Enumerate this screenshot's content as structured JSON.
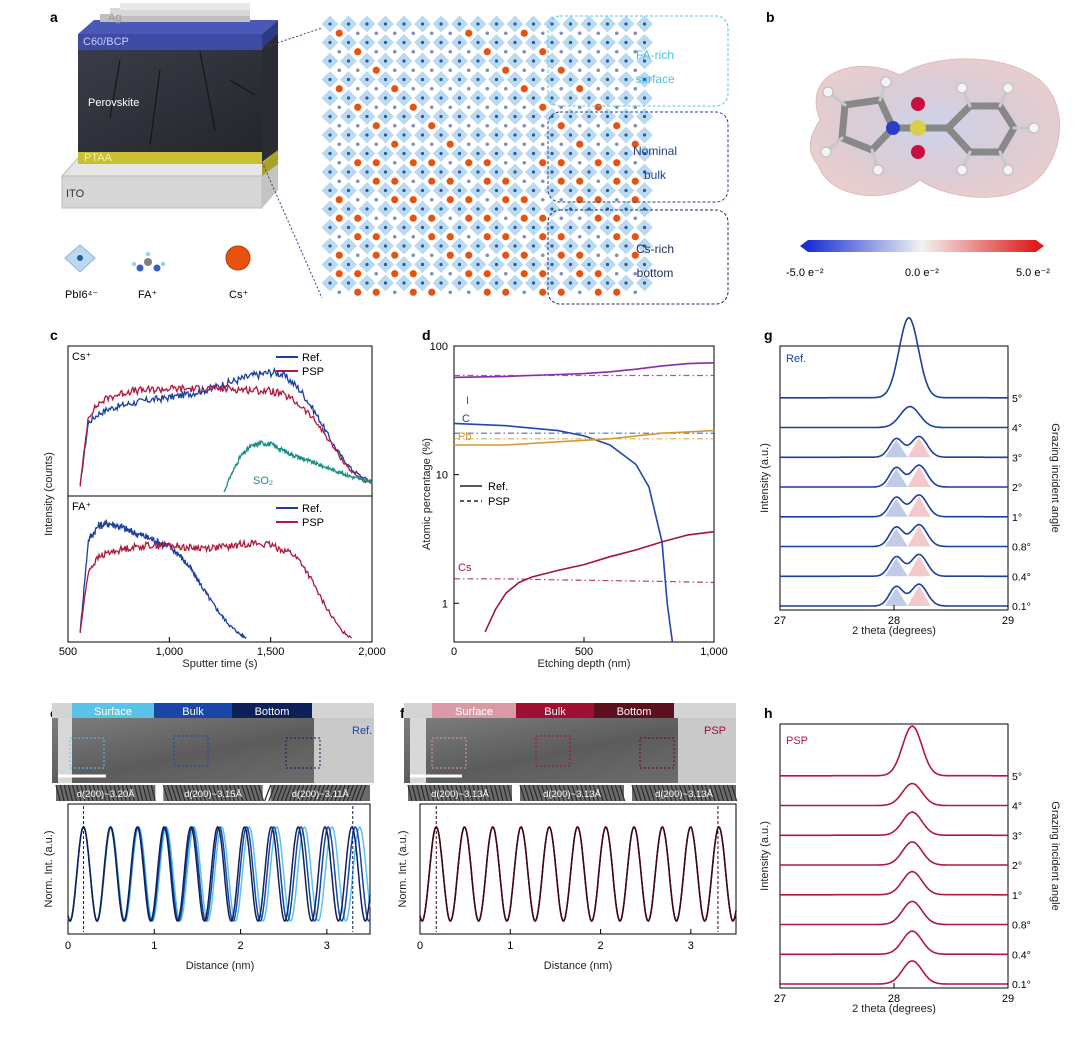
{
  "panel_letters": [
    "a",
    "b",
    "c",
    "d",
    "e",
    "f",
    "g",
    "h"
  ],
  "device": {
    "layers": [
      "Ag",
      "C60/BCP",
      "Perovskite",
      "PTAA",
      "ITO"
    ],
    "legend": [
      "PbI6⁴⁻",
      "FA⁺",
      "Cs⁺"
    ],
    "regions": [
      "FA-rich",
      "surface",
      "Nominal",
      "bulk",
      "Cs-rich",
      "bottom"
    ]
  },
  "esp": {
    "scale_ticks": [
      "-5.0 e⁻²",
      "0.0 e⁻²",
      "5.0 e⁻²"
    ]
  },
  "colors": {
    "ref": "#1a3f9e",
    "psp": "#b0183d",
    "so2": "#1b8f86",
    "iodine": "#8a2aa6",
    "carbon": "#2046b0",
    "lead": "#d69a2c",
    "cesium": "#a0163a"
  },
  "chart_data": [
    {
      "id": "c",
      "type": "line",
      "ylabel": "Intensity (counts)",
      "xlabel": "Sputter time (s)",
      "xlim": [
        500,
        2000
      ],
      "xticks": [
        "500",
        "1,000",
        "1,500",
        "2,000"
      ],
      "subplots": [
        {
          "label": "Cs⁺",
          "series": [
            {
              "name": "Ref.",
              "x": [
                560,
                600,
                650,
                700,
                800,
                900,
                1000,
                1100,
                1200,
                1300,
                1400,
                1500,
                1550,
                1600,
                1650,
                1700,
                1750,
                1800,
                1850,
                1900,
                1950,
                2000
              ],
              "y": [
                0.05,
                0.55,
                0.62,
                0.66,
                0.7,
                0.73,
                0.75,
                0.78,
                0.82,
                0.87,
                0.92,
                0.95,
                0.94,
                0.88,
                0.8,
                0.68,
                0.55,
                0.4,
                0.28,
                0.18,
                0.12,
                0.08
              ]
            },
            {
              "name": "PSP",
              "x": [
                560,
                600,
                650,
                700,
                800,
                900,
                1000,
                1100,
                1200,
                1300,
                1400,
                1500,
                1550,
                1600,
                1650,
                1700,
                1750,
                1800,
                1850,
                1900,
                1950,
                2000
              ],
              "y": [
                0.05,
                0.6,
                0.7,
                0.75,
                0.8,
                0.81,
                0.82,
                0.82,
                0.82,
                0.82,
                0.81,
                0.8,
                0.78,
                0.74,
                0.68,
                0.6,
                0.5,
                0.38,
                0.26,
                0.16,
                0.1,
                0.06
              ]
            },
            {
              "name": "SO₂",
              "x": [
                1270,
                1300,
                1350,
                1400,
                1450,
                1500,
                1550,
                1600,
                1650,
                1700,
                1750,
                1800,
                1850,
                1900,
                1950,
                2000
              ],
              "y": [
                0.0,
                0.12,
                0.28,
                0.36,
                0.39,
                0.38,
                0.34,
                0.3,
                0.27,
                0.24,
                0.21,
                0.18,
                0.15,
                0.12,
                0.1,
                0.08
              ]
            }
          ]
        },
        {
          "label": "FA⁺",
          "series": [
            {
              "name": "Ref.",
              "x": [
                560,
                600,
                650,
                700,
                750,
                800,
                900,
                1000,
                1050,
                1100,
                1150,
                1200,
                1250,
                1300,
                1350,
                1380
              ],
              "y": [
                0.05,
                0.8,
                0.92,
                0.94,
                0.92,
                0.88,
                0.82,
                0.75,
                0.68,
                0.58,
                0.45,
                0.32,
                0.2,
                0.1,
                0.03,
                0.0
              ]
            },
            {
              "name": "PSP",
              "x": [
                560,
                600,
                650,
                700,
                800,
                900,
                1000,
                1100,
                1200,
                1300,
                1400,
                1500,
                1600,
                1650,
                1700,
                1750,
                1800,
                1850,
                1900
              ],
              "y": [
                0.05,
                0.55,
                0.66,
                0.7,
                0.74,
                0.76,
                0.76,
                0.74,
                0.74,
                0.75,
                0.78,
                0.76,
                0.7,
                0.62,
                0.48,
                0.32,
                0.18,
                0.06,
                0.0
              ]
            }
          ]
        }
      ]
    },
    {
      "id": "d",
      "type": "line",
      "yscale": "log",
      "ylabel": "Atomic percentage (%)",
      "xlabel": "Etching depth (nm)",
      "xlim": [
        0,
        1000
      ],
      "ylim": [
        0.5,
        100
      ],
      "xticks": [
        "0",
        "500",
        "1,000"
      ],
      "yticks": [
        "1",
        "10",
        "100"
      ],
      "legend": [
        "Ref.",
        "PSP"
      ],
      "element_labels": [
        "I",
        "C",
        "Pb",
        "Cs"
      ],
      "series": [
        {
          "name": "I Ref.",
          "x": [
            0,
            200,
            400,
            500,
            600,
            700,
            800,
            900,
            1000
          ],
          "y": [
            57,
            58,
            60,
            61,
            63,
            66,
            70,
            73,
            74
          ]
        },
        {
          "name": "I PSP",
          "x": [
            0,
            200,
            400,
            600,
            800,
            1000
          ],
          "y": [
            59,
            59,
            59,
            59,
            59,
            59
          ]
        },
        {
          "name": "C Ref.",
          "x": [
            0,
            200,
            400,
            500,
            600,
            700,
            750,
            800,
            820,
            840
          ],
          "y": [
            25,
            24,
            22,
            20,
            17,
            12,
            8,
            3,
            1,
            0.5
          ]
        },
        {
          "name": "C PSP",
          "x": [
            0,
            200,
            400,
            600,
            800,
            1000
          ],
          "y": [
            21,
            21,
            21,
            21,
            21,
            21
          ]
        },
        {
          "name": "Pb Ref.",
          "x": [
            0,
            200,
            400,
            600,
            800,
            1000
          ],
          "y": [
            17,
            17,
            18,
            19,
            21,
            22
          ]
        },
        {
          "name": "Pb PSP",
          "x": [
            0,
            200,
            400,
            600,
            800,
            1000
          ],
          "y": [
            19,
            19,
            19,
            19,
            19,
            19
          ]
        },
        {
          "name": "Cs Ref.",
          "x": [
            120,
            160,
            200,
            250,
            300,
            400,
            500,
            600,
            700,
            800,
            900,
            1000
          ],
          "y": [
            0.6,
            0.9,
            1.2,
            1.45,
            1.6,
            1.8,
            2.0,
            2.3,
            2.6,
            3.0,
            3.4,
            3.6
          ]
        },
        {
          "name": "Cs PSP",
          "x": [
            0,
            200,
            400,
            600,
            800,
            1000
          ],
          "y": [
            1.55,
            1.55,
            1.52,
            1.5,
            1.48,
            1.45
          ]
        }
      ]
    },
    {
      "id": "g",
      "type": "line",
      "title": "Ref.",
      "xlabel": "2 theta (degrees)",
      "ylabel": "Intensity (a.u.)",
      "y2label": "Grazing incident angle",
      "xlim": [
        27,
        29
      ],
      "xticks": [
        "27",
        "28",
        "29"
      ],
      "angles": [
        "5°",
        "4°",
        "3°",
        "2°",
        "1°",
        "0.8°",
        "0.4°",
        "0.1°"
      ],
      "peak_centers": [
        28.13,
        28.14,
        28.16,
        28.14,
        28.13,
        28.12,
        28.12,
        28.12
      ],
      "peak_heights": [
        1.0,
        0.38,
        0.42,
        0.44,
        0.44,
        0.44,
        0.44,
        0.44
      ]
    },
    {
      "id": "h",
      "type": "line",
      "title": "PSP",
      "xlabel": "2 theta (degrees)",
      "ylabel": "Intensity (a.u.)",
      "y2label": "Grazing incident angle",
      "xlim": [
        27,
        29
      ],
      "xticks": [
        "27",
        "28",
        "29"
      ],
      "angles": [
        "5°",
        "4°",
        "3°",
        "2°",
        "1°",
        "0.8°",
        "0.4°",
        "0.1°"
      ],
      "peak_centers": [
        28.16,
        28.16,
        28.16,
        28.16,
        28.16,
        28.16,
        28.16,
        28.16
      ],
      "peak_heights": [
        0.62,
        0.4,
        0.42,
        0.42,
        0.42,
        0.42,
        0.42,
        0.42
      ]
    },
    {
      "id": "e",
      "type": "line",
      "title": "Ref.",
      "xlabel": "Distance (nm)",
      "ylabel": "Norm. Int. (a.u.)",
      "xlim": [
        0,
        3.5
      ],
      "xticks": [
        "0",
        "1",
        "2",
        "3"
      ],
      "bands": [
        "Surface",
        "Bulk",
        "Bottom"
      ],
      "d_spacings": [
        "~3.20Å",
        "~3.15Å",
        "~3.11Å"
      ],
      "d_label": "d(200)",
      "series": [
        {
          "name": "Surface",
          "period": 0.32
        },
        {
          "name": "Bulk",
          "period": 0.315
        },
        {
          "name": "Bottom",
          "period": 0.311
        }
      ]
    },
    {
      "id": "f",
      "type": "line",
      "title": "PSP",
      "xlabel": "Distance (nm)",
      "ylabel": "Norm. Int. (a.u.)",
      "xlim": [
        0,
        3.5
      ],
      "xticks": [
        "0",
        "1",
        "2",
        "3"
      ],
      "bands": [
        "Surface",
        "Bulk",
        "Bottom"
      ],
      "d_spacings": [
        "~3.13Å",
        "~3.13Å",
        "~3.13Å"
      ],
      "d_label": "d(200)",
      "series": [
        {
          "name": "Surface",
          "period": 0.313
        },
        {
          "name": "Bulk",
          "period": 0.313
        },
        {
          "name": "Bottom",
          "period": 0.313
        }
      ]
    }
  ]
}
